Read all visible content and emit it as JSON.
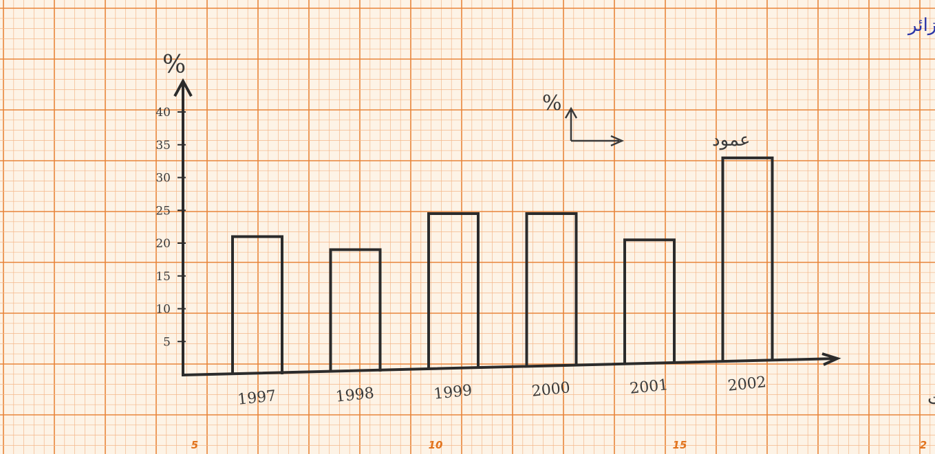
{
  "chart_data": {
    "type": "bar",
    "title": "أعمدة بيانية تمثل البترول الخام من مجموع الصادرات المصدرة كاشت في الجزائر",
    "ylabel": "%",
    "xlabel": "السنوات",
    "categories": [
      "1997",
      "1998",
      "1999",
      "2000",
      "2001",
      "2002"
    ],
    "values": [
      21,
      19,
      24.5,
      24.5,
      20.5,
      33
    ],
    "ylim": [
      0,
      40
    ],
    "yticks": [
      "5",
      "10",
      "15",
      "20",
      "25",
      "30",
      "35",
      "40"
    ],
    "grid": true,
    "legend": {
      "ylabel": "%",
      "label": "عمود"
    },
    "paper_numbers": [
      "5",
      "10",
      "15",
      "2"
    ],
    "colors": {
      "paper": "#fdf3e6",
      "grid_minor": "#f3b78a",
      "grid_major": "#e8853a",
      "ink": "#2a35a8",
      "pencil": "#3a3a3a"
    }
  }
}
